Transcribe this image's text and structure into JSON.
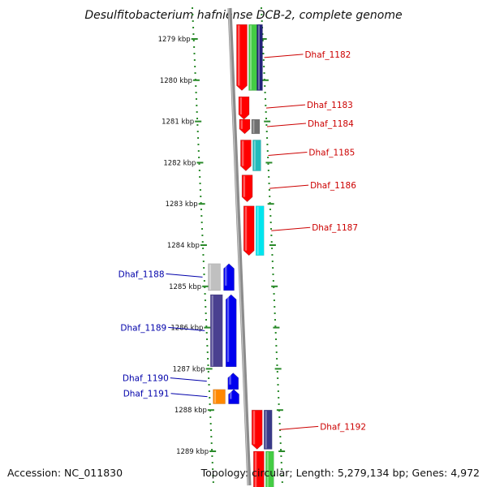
{
  "title": "Desulfitobacterium hafniense DCB-2, complete genome",
  "footer": {
    "accession": "Accession: NC_011830",
    "topology": "Topology: circular; Length: 5,279,134 bp; Genes: 4,972"
  },
  "colors": {
    "forward_label": "#cc0000",
    "reverse_label": "#0000aa",
    "ruler": "#2a8a2a",
    "backbone": "#8c8c8c"
  },
  "ticks": [
    {
      "kbp": 1279,
      "label": "1279 kbp"
    },
    {
      "kbp": 1280,
      "label": "1280 kbp"
    },
    {
      "kbp": 1281,
      "label": "1281 kbp"
    },
    {
      "kbp": 1282,
      "label": "1282 kbp"
    },
    {
      "kbp": 1283,
      "label": "1283 kbp"
    },
    {
      "kbp": 1284,
      "label": "1284 kbp"
    },
    {
      "kbp": 1285,
      "label": "1285 kbp"
    },
    {
      "kbp": 1286,
      "label": "1286 kbp"
    },
    {
      "kbp": 1287,
      "label": "1287 kbp"
    },
    {
      "kbp": 1288,
      "label": "1288 kbp"
    },
    {
      "kbp": 1289,
      "label": "1289 kbp"
    }
  ],
  "genes": [
    {
      "name": "Dhaf_1182",
      "strand": "forward",
      "start": 1278.65,
      "end": 1280.25,
      "colors": [
        "#ff0000",
        "#44cc44",
        "#22227a"
      ]
    },
    {
      "name": "Dhaf_1183",
      "strand": "forward",
      "start": 1280.4,
      "end": 1280.95,
      "colors": [
        "#ff0000"
      ]
    },
    {
      "name": "Dhaf_1184",
      "strand": "forward",
      "start": 1280.95,
      "end": 1281.3,
      "colors": [
        "#ff0000",
        "#707070"
      ]
    },
    {
      "name": "Dhaf_1185",
      "strand": "forward",
      "start": 1281.45,
      "end": 1282.2,
      "colors": [
        "#ff0000",
        "#22bbbb"
      ]
    },
    {
      "name": "Dhaf_1186",
      "strand": "forward",
      "start": 1282.3,
      "end": 1282.95,
      "colors": [
        "#ff0000"
      ]
    },
    {
      "name": "Dhaf_1187",
      "strand": "forward",
      "start": 1283.05,
      "end": 1284.25,
      "colors": [
        "#ff0000",
        "#00e5ee"
      ]
    },
    {
      "name": "Dhaf_1188",
      "strand": "reverse",
      "start": 1284.45,
      "end": 1285.1,
      "colors": [
        "#0000ee",
        "#c0c0c0"
      ]
    },
    {
      "name": "Dhaf_1189",
      "strand": "reverse",
      "start": 1285.2,
      "end": 1286.95,
      "colors": [
        "#0000ee",
        "#4a4090"
      ]
    },
    {
      "name": "Dhaf_1190",
      "strand": "reverse",
      "start": 1287.1,
      "end": 1287.5,
      "colors": [
        "#0000ee"
      ]
    },
    {
      "name": "Dhaf_1191",
      "strand": "reverse",
      "start": 1287.5,
      "end": 1287.85,
      "colors": [
        "#0000ee",
        "#ff8800"
      ]
    },
    {
      "name": "Dhaf_1192",
      "strand": "forward",
      "start": 1288.0,
      "end": 1288.95,
      "colors": [
        "#ff0000",
        "#3a3a88"
      ]
    },
    {
      "name": "",
      "strand": "forward",
      "start": 1289.0,
      "end": 1290.0,
      "colors": [
        "#ff0000",
        "#44cc44"
      ]
    }
  ]
}
